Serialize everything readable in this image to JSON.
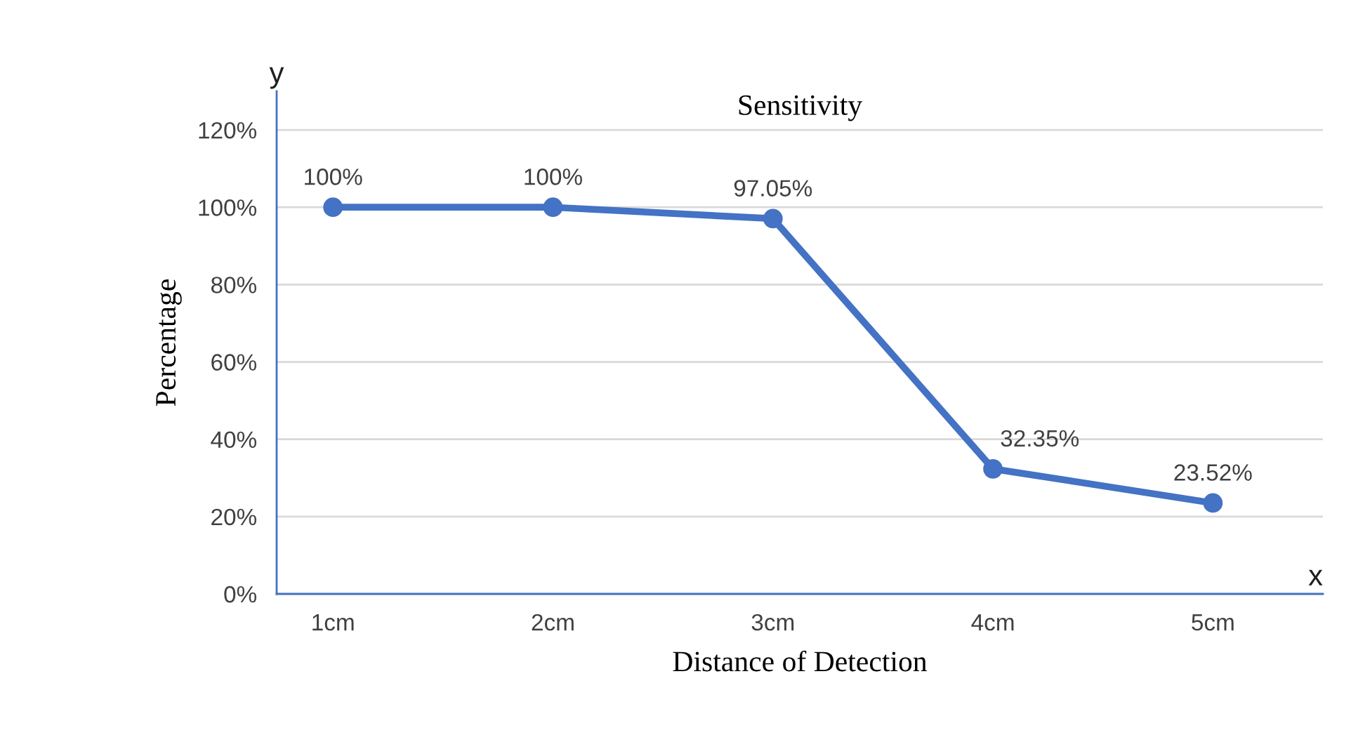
{
  "chart_data": {
    "type": "line",
    "title": "Sensitivity",
    "xlabel": "Distance of Detection",
    "ylabel": "Percentage",
    "annotations": [
      "y",
      "x"
    ],
    "categories": [
      "1cm",
      "2cm",
      "3cm",
      "4cm",
      "5cm"
    ],
    "series": [
      {
        "color": "#4472c4",
        "values": [
          100,
          100,
          97.05,
          32.35,
          23.52
        ],
        "value_labels": [
          "100%",
          "100%",
          "97.05%",
          "32.35%",
          "23.52%"
        ]
      }
    ],
    "ylim": [
      0,
      130
    ],
    "yticks": [
      {
        "value": 0,
        "label": "0%"
      },
      {
        "value": 20,
        "label": "20%"
      },
      {
        "value": 40,
        "label": "40%"
      },
      {
        "value": 60,
        "label": "60%"
      },
      {
        "value": 80,
        "label": "80%"
      },
      {
        "value": 100,
        "label": "100%"
      },
      {
        "value": 120,
        "label": "120%"
      }
    ],
    "grid": "y",
    "marker": "circle",
    "line_style": "solid",
    "legend": false
  }
}
